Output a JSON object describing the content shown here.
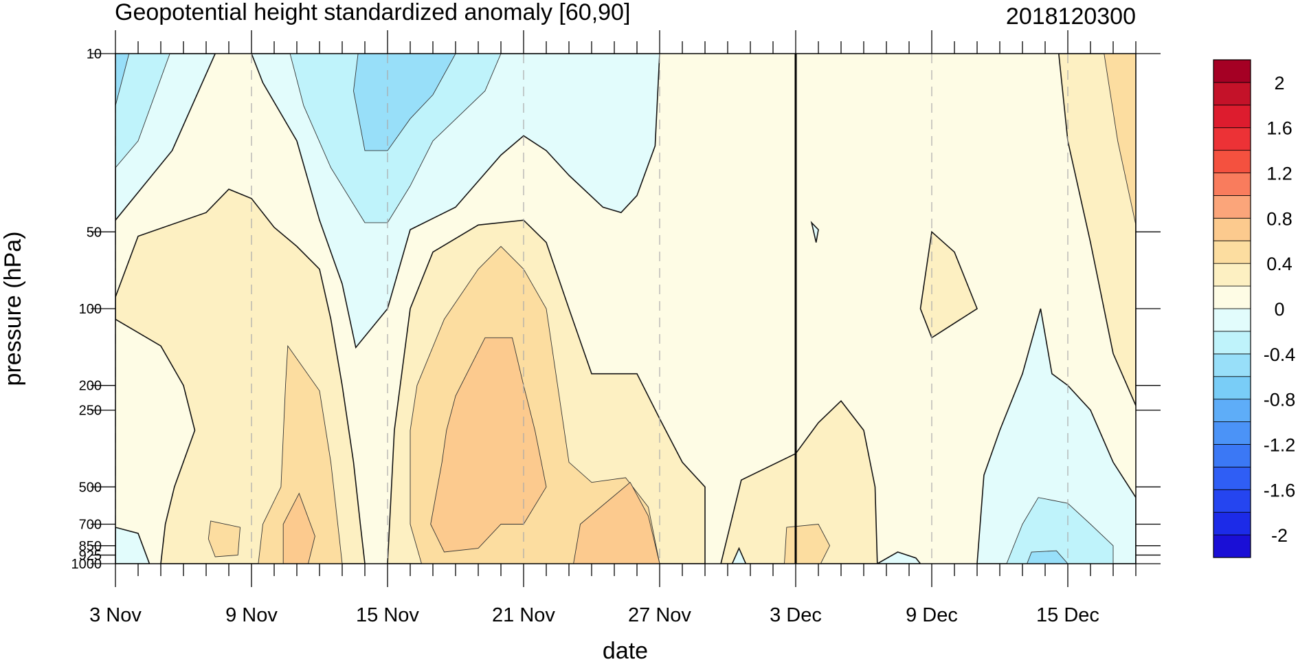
{
  "chart_data": {
    "type": "heatmap",
    "title": "Geopotential height standardized anomaly [60,90]",
    "stamp": "2018120300",
    "xlabel": "date",
    "ylabel": "pressure (hPa)",
    "x_tick_labels": [
      "3 Nov",
      "9 Nov",
      "15 Nov",
      "21 Nov",
      "27 Nov",
      "3 Dec",
      "9 Dec",
      "15 Dec"
    ],
    "y_tick_labels": [
      "10",
      "50",
      "100",
      "200",
      "250",
      "500",
      "700",
      "850",
      "925",
      "1000"
    ],
    "y_scale": "log",
    "ylim": [
      1000,
      10
    ],
    "xlim": [
      "2018-11-03",
      "2018-12-18"
    ],
    "current_date": "2018-12-03",
    "grid": "dashed vertical lines at labeled dates",
    "colorbar": {
      "levels": [
        -2.2,
        -2.0,
        -1.8,
        -1.6,
        -1.4,
        -1.2,
        -1.0,
        -0.8,
        -0.6,
        -0.4,
        -0.2,
        0,
        0.2,
        0.4,
        0.6,
        0.8,
        1.0,
        1.2,
        1.4,
        1.6,
        1.8,
        2.0,
        2.2
      ],
      "tick_labels": [
        "2",
        "1.6",
        "1.2",
        "0.8",
        "0.4",
        "0",
        "-0.4",
        "-0.8",
        "-1.2",
        "-1.6",
        "-2"
      ],
      "tick_values": [
        2,
        1.6,
        1.2,
        0.8,
        0.4,
        0,
        -0.4,
        -0.8,
        -1.2,
        -1.6,
        -2
      ],
      "colors": [
        "#1a0fd6",
        "#1c2be8",
        "#2545f0",
        "#2f5ef5",
        "#3b78f5",
        "#4b93f7",
        "#5eadf8",
        "#79cdf7",
        "#98dff9",
        "#bff3fb",
        "#e2fcfc",
        "#fefce5",
        "#fdf0c2",
        "#fcdda0",
        "#fcca8e",
        "#fba57a",
        "#f97c5d",
        "#f4513f",
        "#ec3236",
        "#dd1c2e",
        "#c41229",
        "#a50024"
      ]
    },
    "series": [
      {
        "value": -0.2,
        "polygon": [
          [
            "2018-11-03",
            10
          ],
          [
            "2018-11-07.4",
            10
          ],
          [
            "2018-11-05.5",
            24
          ],
          [
            "2018-11-03",
            45
          ]
        ]
      },
      {
        "value": -0.4,
        "polygon": [
          [
            "2018-11-03",
            10
          ],
          [
            "2018-11-05.4",
            10
          ],
          [
            "2018-11-04",
            22
          ],
          [
            "2018-11-03",
            28
          ]
        ]
      },
      {
        "value": -0.6,
        "polygon": [
          [
            "2018-11-03",
            10
          ],
          [
            "2018-11-03.6",
            10
          ],
          [
            "2018-11-03",
            16
          ]
        ]
      },
      {
        "value": -0.2,
        "polygon": [
          [
            "2018-11-09",
            10
          ],
          [
            "2018-11-27",
            10
          ],
          [
            "2018-11-26.8",
            23
          ],
          [
            "2018-11-26",
            36
          ],
          [
            "2018-11-25.3",
            42
          ],
          [
            "2018-11-24.5",
            40
          ],
          [
            "2018-11-23",
            30
          ],
          [
            "2018-11-22",
            24
          ],
          [
            "2018-11-21",
            21
          ],
          [
            "2018-11-20",
            25
          ],
          [
            "2018-11-18",
            40
          ],
          [
            "2018-11-16",
            49
          ],
          [
            "2018-11-15",
            100
          ],
          [
            "2018-11-13.6",
            142
          ],
          [
            "2018-11-13",
            80
          ],
          [
            "2018-11-12",
            45
          ],
          [
            "2018-11-11",
            22
          ],
          [
            "2018-11-09.5",
            13
          ]
        ]
      },
      {
        "value": -0.4,
        "polygon": [
          [
            "2018-11-10.7",
            10
          ],
          [
            "2018-11-20",
            10
          ],
          [
            "2018-11-19.3",
            14
          ],
          [
            "2018-11-17",
            22
          ],
          [
            "2018-11-16",
            33
          ],
          [
            "2018-11-15",
            46
          ],
          [
            "2018-11-14",
            46
          ],
          [
            "2018-11-12.5",
            28
          ],
          [
            "2018-11-11.3",
            16
          ]
        ]
      },
      {
        "value": -0.6,
        "polygon": [
          [
            "2018-11-13.7",
            10
          ],
          [
            "2018-11-18",
            10
          ],
          [
            "2018-11-17",
            14.5
          ],
          [
            "2018-11-16",
            18
          ],
          [
            "2018-11-15",
            24
          ],
          [
            "2018-11-14",
            24
          ],
          [
            "2018-11-13.5",
            14
          ]
        ]
      },
      {
        "value": 0.2,
        "polygon": [
          [
            "2018-11-03",
            90
          ],
          [
            "2018-11-04",
            52
          ],
          [
            "2018-11-07",
            42
          ],
          [
            "2018-11-08",
            34
          ],
          [
            "2018-11-09",
            37
          ],
          [
            "2018-11-10",
            48
          ],
          [
            "2018-11-11",
            57
          ],
          [
            "2018-11-12",
            70
          ],
          [
            "2018-11-12.5",
            110
          ],
          [
            "2018-11-13",
            200
          ],
          [
            "2018-11-13.5",
            400
          ],
          [
            "2018-11-13.8",
            700
          ],
          [
            "2018-11-14",
            1000
          ],
          [
            "2018-11-05",
            1000
          ],
          [
            "2018-11-05.2",
            700
          ],
          [
            "2018-11-05.6",
            500
          ],
          [
            "2018-11-06.5",
            300
          ],
          [
            "2018-11-06",
            200
          ],
          [
            "2018-11-05",
            140
          ],
          [
            "2018-11-03",
            110
          ]
        ]
      },
      {
        "value": 0.4,
        "polygon": [
          [
            "2018-11-10.6",
            140
          ],
          [
            "2018-11-12",
            210
          ],
          [
            "2018-11-12.5",
            400
          ],
          [
            "2018-11-13",
            1000
          ],
          [
            "2018-11-09.3",
            1000
          ],
          [
            "2018-11-09.5",
            700
          ],
          [
            "2018-11-10.3",
            500
          ],
          [
            "2018-11-10.5",
            200
          ]
        ]
      },
      {
        "value": 0.6,
        "polygon": [
          [
            "2018-11-11.1",
            530
          ],
          [
            "2018-11-11.8",
            780
          ],
          [
            "2018-11-11.5",
            1000
          ],
          [
            "2018-11-10.4",
            1000
          ],
          [
            "2018-11-10.4",
            700
          ]
        ]
      },
      {
        "value": 0.4,
        "polygon": [
          [
            "2018-11-07.2",
            680
          ],
          [
            "2018-11-08.5",
            720
          ],
          [
            "2018-11-08.4",
            925
          ],
          [
            "2018-11-07.4",
            940
          ],
          [
            "2018-11-07.1",
            800
          ]
        ]
      },
      {
        "value": 0.2,
        "polygon": [
          [
            "2018-11-15",
            1000
          ],
          [
            "2018-11-15.3",
            300
          ],
          [
            "2018-11-16",
            100
          ],
          [
            "2018-11-17",
            60
          ],
          [
            "2018-11-19",
            47
          ],
          [
            "2018-11-21",
            45
          ],
          [
            "2018-11-22",
            55
          ],
          [
            "2018-11-23",
            100
          ],
          [
            "2018-11-24",
            180
          ],
          [
            "2018-11-26",
            180
          ],
          [
            "2018-11-27",
            270
          ],
          [
            "2018-11-28",
            400
          ],
          [
            "2018-11-29",
            500
          ],
          [
            "2018-11-29",
            1000
          ]
        ]
      },
      {
        "value": 0.4,
        "polygon": [
          [
            "2018-11-16.3",
            200
          ],
          [
            "2018-11-17.5",
            110
          ],
          [
            "2018-11-19",
            70
          ],
          [
            "2018-11-20",
            57
          ],
          [
            "2018-11-21",
            70
          ],
          [
            "2018-11-22",
            100
          ],
          [
            "2018-11-22.5",
            200
          ],
          [
            "2018-11-23",
            400
          ],
          [
            "2018-11-24",
            480
          ],
          [
            "2018-11-25.5",
            460
          ],
          [
            "2018-11-26.5",
            600
          ],
          [
            "2018-11-27",
            1000
          ],
          [
            "2018-11-16.5",
            1000
          ],
          [
            "2018-11-16",
            700
          ],
          [
            "2018-11-16",
            300
          ]
        ]
      },
      {
        "value": 0.6,
        "polygon": [
          [
            "2018-11-18",
            220
          ],
          [
            "2018-11-19.3",
            130
          ],
          [
            "2018-11-20.5",
            130
          ],
          [
            "2018-11-21",
            200
          ],
          [
            "2018-11-21.5",
            300
          ],
          [
            "2018-11-22",
            500
          ],
          [
            "2018-11-21",
            700
          ],
          [
            "2018-11-20",
            700
          ],
          [
            "2018-11-19",
            870
          ],
          [
            "2018-11-17.5",
            900
          ],
          [
            "2018-11-16.9",
            700
          ],
          [
            "2018-11-17.4",
            400
          ],
          [
            "2018-11-17.6",
            300
          ]
        ]
      },
      {
        "value": 0.6,
        "polygon": [
          [
            "2018-11-23.5",
            700
          ],
          [
            "2018-11-25.7",
            480
          ],
          [
            "2018-11-26.5",
            650
          ],
          [
            "2018-11-27",
            1000
          ],
          [
            "2018-11-23.2",
            1000
          ]
        ]
      },
      {
        "value": 0.2,
        "polygon": [
          [
            "2018-11-29.7",
            1000
          ],
          [
            "2018-11-30.6",
            470
          ],
          [
            "2018-12-03",
            370
          ],
          [
            "2018-12-04",
            280
          ],
          [
            "2018-12-05",
            230
          ],
          [
            "2018-12-06",
            300
          ],
          [
            "2018-12-06.5",
            500
          ],
          [
            "2018-12-06.6",
            1000
          ]
        ]
      },
      {
        "value": 0.4,
        "polygon": [
          [
            "2018-12-02.6",
            720
          ],
          [
            "2018-12-04",
            700
          ],
          [
            "2018-12-04.5",
            850
          ],
          [
            "2018-12-04.1",
            1000
          ],
          [
            "2018-12-02.5",
            1000
          ]
        ]
      },
      {
        "value": 0.2,
        "polygon": [
          [
            "2018-12-08.5",
            100
          ],
          [
            "2018-12-09",
            50
          ],
          [
            "2018-12-10",
            60
          ],
          [
            "2018-12-11",
            100
          ],
          [
            "2018-12-09",
            130
          ]
        ]
      },
      {
        "value": 0.2,
        "polygon": [
          [
            "2018-12-18",
            10
          ],
          [
            "2018-12-18",
            240
          ],
          [
            "2018-12-17",
            150
          ],
          [
            "2018-12-16",
            55
          ],
          [
            "2018-12-15",
            22
          ],
          [
            "2018-12-14.6",
            10
          ]
        ]
      },
      {
        "value": 0.4,
        "polygon": [
          [
            "2018-12-18",
            10
          ],
          [
            "2018-12-18",
            47
          ],
          [
            "2018-12-17.2",
            22
          ],
          [
            "2018-12-16.6",
            10
          ]
        ]
      },
      {
        "value": -0.2,
        "polygon": [
          [
            "2018-12-11",
            1000
          ],
          [
            "2018-12-11.3",
            450
          ],
          [
            "2018-12-12",
            300
          ],
          [
            "2018-12-13",
            180
          ],
          [
            "2018-12-13.8",
            100
          ],
          [
            "2018-12-14.3",
            180
          ],
          [
            "2018-12-15",
            200
          ],
          [
            "2018-12-16",
            250
          ],
          [
            "2018-12-17",
            400
          ],
          [
            "2018-12-18",
            550
          ],
          [
            "2018-12-18",
            1000
          ]
        ]
      },
      {
        "value": -0.4,
        "polygon": [
          [
            "2018-12-12.3",
            1000
          ],
          [
            "2018-12-13",
            700
          ],
          [
            "2018-12-13.7",
            550
          ],
          [
            "2018-12-15",
            580
          ],
          [
            "2018-12-16",
            700
          ],
          [
            "2018-12-17",
            850
          ],
          [
            "2018-12-17",
            1000
          ]
        ]
      },
      {
        "value": -0.6,
        "polygon": [
          [
            "2018-12-13.2",
            1000
          ],
          [
            "2018-12-13.4",
            900
          ],
          [
            "2018-12-14.5",
            890
          ],
          [
            "2018-12-15",
            1000
          ]
        ]
      },
      {
        "value": -0.2,
        "polygon": [
          [
            "2018-12-06.6",
            1000
          ],
          [
            "2018-12-07.5",
            900
          ],
          [
            "2018-12-08.3",
            950
          ],
          [
            "2018-12-08.5",
            1000
          ]
        ]
      },
      {
        "value": -0.2,
        "polygon": [
          [
            "2018-11-03",
            720
          ],
          [
            "2018-11-04",
            760
          ],
          [
            "2018-11-04.5",
            1000
          ],
          [
            "2018-11-03",
            1000
          ]
        ]
      },
      {
        "value": -0.2,
        "polygon": [
          [
            "2018-11-30.2",
            1000
          ],
          [
            "2018-11-30.5",
            870
          ],
          [
            "2018-11-30.8",
            1000
          ]
        ]
      },
      {
        "value": -0.2,
        "polygon": [
          [
            "2018-12-03.7",
            46
          ],
          [
            "2018-12-04",
            49
          ],
          [
            "2018-12-03.9",
            55
          ]
        ]
      }
    ]
  }
}
